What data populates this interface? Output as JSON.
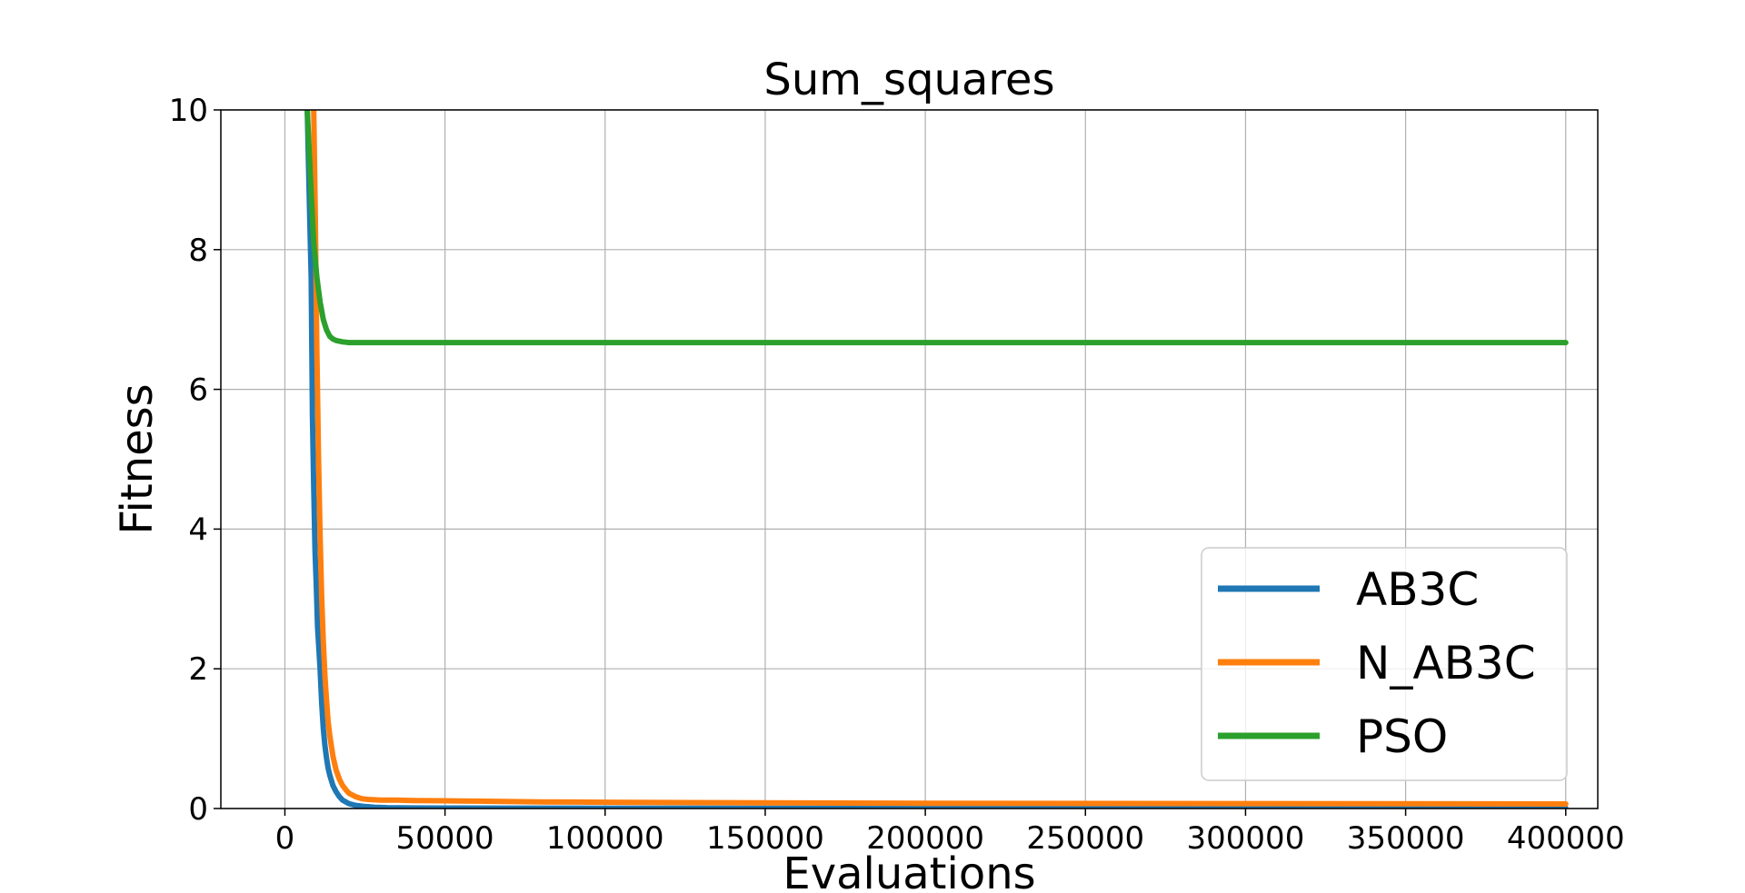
{
  "chart_data": {
    "type": "line",
    "title": "Sum_squares",
    "xlabel": "Evaluations",
    "ylabel": "Fitness",
    "xlim": [
      -20000,
      410000
    ],
    "ylim": [
      0,
      10
    ],
    "xticks": [
      0,
      50000,
      100000,
      150000,
      200000,
      250000,
      300000,
      350000,
      400000
    ],
    "xtick_labels": [
      "0",
      "50000",
      "100000",
      "150000",
      "200000",
      "250000",
      "300000",
      "350000",
      "400000"
    ],
    "yticks": [
      0,
      2,
      4,
      6,
      8,
      10
    ],
    "ytick_labels": [
      "0",
      "2",
      "4",
      "6",
      "8",
      "10"
    ],
    "grid": true,
    "legend_position": "lower-right",
    "series": [
      {
        "name": "AB3C",
        "color": "#1f77b4",
        "x": [
          7000,
          7800,
          8200,
          8600,
          9000,
          9400,
          9800,
          10200,
          10600,
          11000,
          11500,
          12000,
          12500,
          13000,
          13500,
          14000,
          15000,
          16000,
          17000,
          18000,
          20000,
          22000,
          25000,
          28000,
          32000,
          40000,
          50000,
          70000,
          100000,
          200000,
          300000,
          400000
        ],
        "y": [
          10.0,
          8.4,
          7.6,
          5.6,
          4.6,
          3.7,
          3.2,
          2.6,
          2.3,
          2.0,
          1.5,
          1.15,
          0.9,
          0.72,
          0.58,
          0.48,
          0.33,
          0.24,
          0.17,
          0.12,
          0.07,
          0.045,
          0.028,
          0.018,
          0.012,
          0.008,
          0.006,
          0.005,
          0.004,
          0.003,
          0.003,
          0.003
        ]
      },
      {
        "name": "N_AB3C",
        "color": "#ff7f0e",
        "x": [
          9000,
          9500,
          10000,
          10500,
          11000,
          11500,
          12000,
          12500,
          13000,
          13500,
          14000,
          15000,
          16000,
          17000,
          18000,
          19000,
          20000,
          22000,
          24000,
          26000,
          28000,
          30000,
          35000,
          40000,
          50000,
          60000,
          80000,
          100000,
          150000,
          200000,
          300000,
          400000
        ],
        "y": [
          10.0,
          8.5,
          6.5,
          5.0,
          3.9,
          3.0,
          2.4,
          1.9,
          1.55,
          1.25,
          1.05,
          0.75,
          0.55,
          0.42,
          0.33,
          0.27,
          0.22,
          0.17,
          0.14,
          0.13,
          0.125,
          0.12,
          0.12,
          0.115,
          0.11,
          0.105,
          0.095,
          0.09,
          0.08,
          0.075,
          0.07,
          0.065
        ]
      },
      {
        "name": "PSO",
        "color": "#2ca02c",
        "x": [
          7000,
          8000,
          9000,
          10000,
          11000,
          12000,
          13000,
          14000,
          15000,
          16000,
          18000,
          20000,
          25000,
          30000,
          50000,
          100000,
          200000,
          300000,
          400000
        ],
        "y": [
          10.0,
          9.0,
          8.1,
          7.6,
          7.25,
          7.0,
          6.85,
          6.76,
          6.72,
          6.7,
          6.68,
          6.67,
          6.67,
          6.67,
          6.67,
          6.67,
          6.67,
          6.67,
          6.67
        ]
      }
    ]
  }
}
